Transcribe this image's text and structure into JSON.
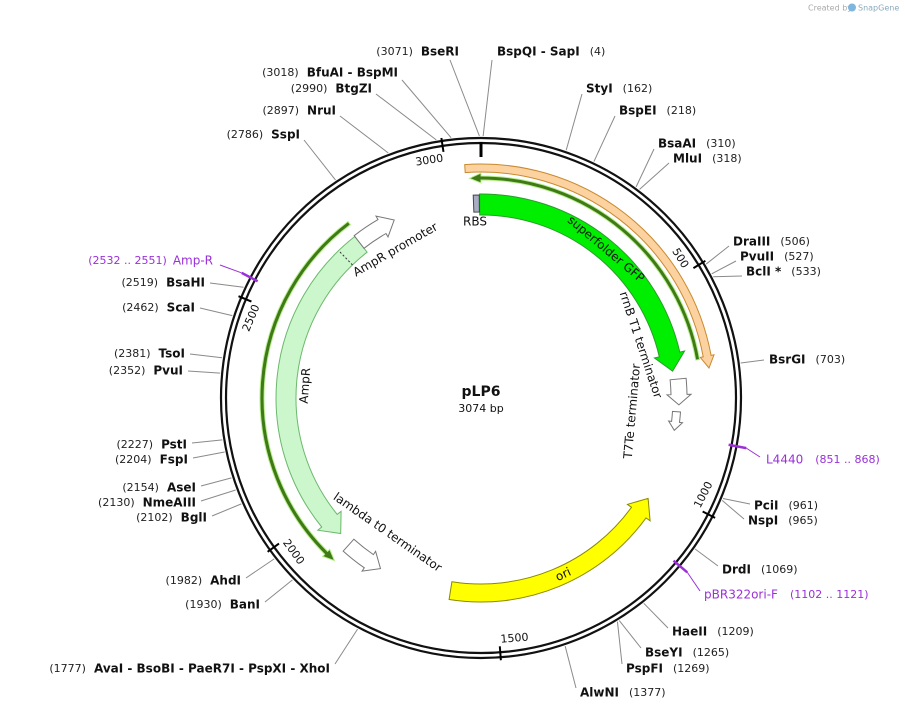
{
  "watermark": {
    "prefix": "Created by",
    "brand": "SnapGene"
  },
  "plasmid": {
    "name": "pLP6",
    "size": {
      "value": 3074,
      "label": "3074 bp"
    }
  },
  "ticks": [
    500,
    1000,
    1500,
    2000,
    2500,
    3000
  ],
  "features": [
    {
      "label": "superfolder GFP"
    },
    {
      "label": "rrnB T1 terminator"
    },
    {
      "label": "T7Te terminator"
    },
    {
      "label": "ori"
    },
    {
      "label": "lambda t0 terminator"
    },
    {
      "label": "AmpR"
    },
    {
      "label": "AmpR promoter"
    },
    {
      "label": "RBS"
    }
  ],
  "sites": [
    {
      "name": "BseRI",
      "position": {
        "value": 3071,
        "label": "(3071)"
      }
    },
    {
      "name": "BspQI - SapI",
      "position": {
        "value": 4,
        "label": "(4)"
      }
    },
    {
      "name": "BfuAI - BspMI",
      "position": {
        "value": 3018,
        "label": "(3018)"
      }
    },
    {
      "name": "BtgZI",
      "position": {
        "value": 2990,
        "label": "(2990)"
      }
    },
    {
      "name": "NruI",
      "position": {
        "value": 2897,
        "label": "(2897)"
      }
    },
    {
      "name": "SspI",
      "position": {
        "value": 2786,
        "label": "(2786)"
      }
    },
    {
      "name": "StyI",
      "position": {
        "value": 162,
        "label": "(162)"
      }
    },
    {
      "name": "BspEI",
      "position": {
        "value": 218,
        "label": "(218)"
      }
    },
    {
      "name": "BsaAI",
      "position": {
        "value": 310,
        "label": "(310)"
      }
    },
    {
      "name": "MluI",
      "position": {
        "value": 318,
        "label": "(318)"
      }
    },
    {
      "name": "DraIII",
      "position": {
        "value": 506,
        "label": "(506)"
      }
    },
    {
      "name": "PvuII",
      "position": {
        "value": 527,
        "label": "(527)"
      }
    },
    {
      "name": "BclI *",
      "position": {
        "value": 533,
        "label": "(533)"
      }
    },
    {
      "name": "BsrGI",
      "position": {
        "value": 703,
        "label": "(703)"
      }
    },
    {
      "name": "PciI",
      "position": {
        "value": 961,
        "label": "(961)"
      }
    },
    {
      "name": "NspI",
      "position": {
        "value": 965,
        "label": "(965)"
      }
    },
    {
      "name": "DrdI",
      "position": {
        "value": 1069,
        "label": "(1069)"
      }
    },
    {
      "name": "HaeII",
      "position": {
        "value": 1209,
        "label": "(1209)"
      }
    },
    {
      "name": "BseYI",
      "position": {
        "value": 1265,
        "label": "(1265)"
      }
    },
    {
      "name": "PspFI",
      "position": {
        "value": 1269,
        "label": "(1269)"
      }
    },
    {
      "name": "AlwNI",
      "position": {
        "value": 1377,
        "label": "(1377)"
      }
    },
    {
      "name": "BsaHI",
      "position": {
        "value": 2519,
        "label": "(2519)"
      }
    },
    {
      "name": "ScaI",
      "position": {
        "value": 2462,
        "label": "(2462)"
      }
    },
    {
      "name": "TsoI",
      "position": {
        "value": 2381,
        "label": "(2381)"
      }
    },
    {
      "name": "PvuI",
      "position": {
        "value": 2352,
        "label": "(2352)"
      }
    },
    {
      "name": "PstI",
      "position": {
        "value": 2227,
        "label": "(2227)"
      }
    },
    {
      "name": "FspI",
      "position": {
        "value": 2204,
        "label": "(2204)"
      }
    },
    {
      "name": "AseI",
      "position": {
        "value": 2154,
        "label": "(2154)"
      }
    },
    {
      "name": "NmeAIII",
      "position": {
        "value": 2130,
        "label": "(2130)"
      }
    },
    {
      "name": "BglI",
      "position": {
        "value": 2102,
        "label": "(2102)"
      }
    },
    {
      "name": "AhdI",
      "position": {
        "value": 1982,
        "label": "(1982)"
      }
    },
    {
      "name": "BanI",
      "position": {
        "value": 1930,
        "label": "(1930)"
      }
    },
    {
      "name": "AvaI - BsoBI - PaeR7I - PspXI - XhoI",
      "position": {
        "value": 1777,
        "label": "(1777)"
      }
    }
  ],
  "primers": [
    {
      "name": "Amp-R",
      "range": "(2532 .. 2551)"
    },
    {
      "name": "L4440",
      "range": "(851 .. 868)"
    },
    {
      "name": "pBR322ori-F",
      "range": "(1102 .. 1121)"
    }
  ]
}
